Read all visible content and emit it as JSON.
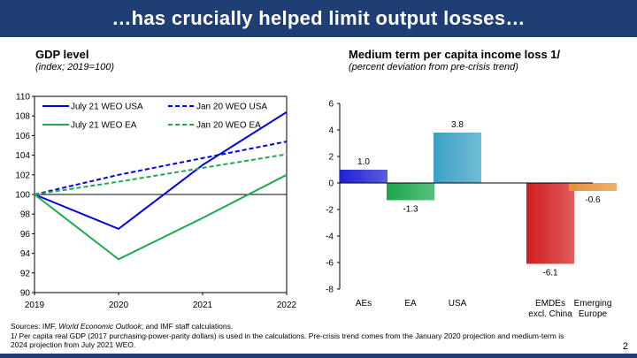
{
  "slide_title": "…has crucially helped limit output losses…",
  "chart_data": [
    {
      "type": "line",
      "title": "GDP level",
      "subtitle": "(index; 2019=100)",
      "x": [
        2019,
        2020,
        2021,
        2022
      ],
      "ylim": [
        90,
        110
      ],
      "yticks": [
        90,
        92,
        94,
        96,
        98,
        100,
        102,
        104,
        106,
        108,
        110
      ],
      "grid": false,
      "legend_position": "top",
      "series": [
        {
          "name": "July 21 WEO USA",
          "values": [
            100,
            96.5,
            103.0,
            108.4
          ],
          "color": "#0000e6",
          "dash": "solid"
        },
        {
          "name": "Jan 20 WEO USA",
          "values": [
            100,
            102.0,
            103.7,
            105.4
          ],
          "color": "#0000e6",
          "dash": "dashed"
        },
        {
          "name": "July 21 WEO EA",
          "values": [
            100,
            93.4,
            97.6,
            102.0
          ],
          "color": "#1faa4f",
          "dash": "solid"
        },
        {
          "name": "Jan 20 WEO EA",
          "values": [
            100,
            101.3,
            102.7,
            104.1
          ],
          "color": "#1faa4f",
          "dash": "dashed"
        }
      ]
    },
    {
      "type": "bar",
      "title": "Medium term per capita income loss 1/",
      "subtitle": "(percent deviation from pre-crisis trend)",
      "categories": [
        "AEs",
        "EA",
        "USA",
        "EMDEs excl. China",
        "Emerging Europe"
      ],
      "category_label_lines": [
        [
          "AEs"
        ],
        [
          "EA"
        ],
        [
          "USA"
        ],
        [
          "EMDEs",
          "excl. China"
        ],
        [
          "Emerging",
          "Europe"
        ]
      ],
      "values": [
        1.0,
        -1.3,
        3.8,
        -6.1,
        -0.6
      ],
      "value_labels": [
        "1.0",
        "-1.3",
        "3.8",
        "-6.1",
        "-0.6"
      ],
      "colors": [
        "#1f1fd6",
        "#1aa64a",
        "#3aa0c4",
        "#d21c1c",
        "#e8903a"
      ],
      "ylim": [
        -8,
        6
      ],
      "yticks": [
        -8,
        -6,
        -4,
        -2,
        0,
        2,
        4,
        6
      ],
      "ytick_labels": [
        "-8",
        "-6",
        "-4",
        "-2",
        "0",
        "2",
        "4",
        "6"
      ]
    }
  ],
  "notes": {
    "sources_prefix": "Sources: IMF, ",
    "sources_italic": "World Economic Outlook",
    "sources_suffix": "; and IMF staff calculations.",
    "footnote_line1": "1/ Per capita real GDP (2017 purchasing-power-parity dollars) is used in the calculations. Pre-crisis trend comes from the January 2020 projection and medium-term is",
    "footnote_line2": "2024 projection from July 2021 WEO."
  },
  "page_number": "2"
}
